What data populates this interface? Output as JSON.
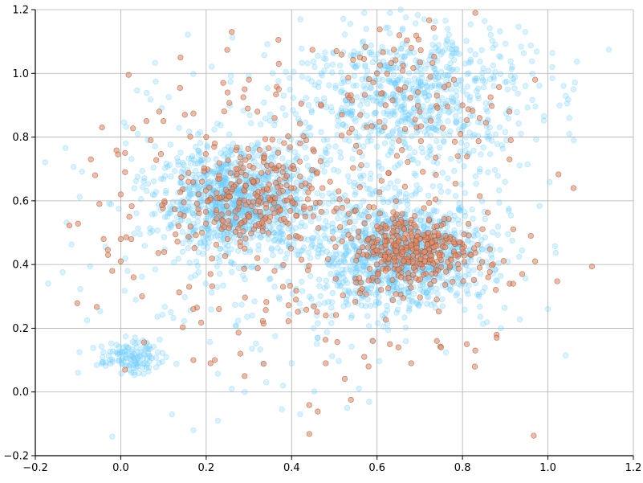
{
  "chart_data": {
    "type": "scatter",
    "title": "",
    "xlabel": "",
    "ylabel": "",
    "xlim": [
      -0.2,
      1.2
    ],
    "ylim": [
      -0.2,
      1.2
    ],
    "x_ticks": [
      -0.2,
      0.0,
      0.2,
      0.4,
      0.6,
      0.8,
      1.0,
      1.2
    ],
    "y_ticks": [
      -0.2,
      0.0,
      0.2,
      0.4,
      0.6,
      0.8,
      1.0,
      1.2
    ],
    "x_tick_labels": [
      "−0.2",
      "0.0",
      "0.2",
      "0.4",
      "0.6",
      "0.8",
      "1.0",
      "1.2"
    ],
    "y_tick_labels": [
      "−0.2",
      "0.0",
      "0.2",
      "0.4",
      "0.6",
      "0.8",
      "1.0",
      "1.2"
    ],
    "grid": true,
    "legend": "none",
    "colors": {
      "blue_fill": "#66ccff",
      "orange_fill": "#f08a60",
      "orange_edge": "#7a5a4a",
      "grid": "#b0b0b0",
      "axis": "#000000"
    },
    "series": [
      {
        "color": "#66ccff",
        "opacity": 0.25,
        "note_clusters": [
          {
            "center": [
              0.27,
              0.6
            ],
            "spread": [
              0.09,
              0.08
            ],
            "count": 900
          },
          {
            "center": [
              0.66,
              0.43
            ],
            "spread": [
              0.1,
              0.08
            ],
            "count": 1000
          },
          {
            "center": [
              0.68,
              0.93
            ],
            "spread": [
              0.14,
              0.12
            ],
            "count": 700
          },
          {
            "center": [
              0.02,
              0.11
            ],
            "spread": [
              0.035,
              0.025
            ],
            "count": 120
          },
          {
            "center": [
              0.45,
              0.55
            ],
            "spread": [
              0.25,
              0.25
            ],
            "count": 450
          }
        ],
        "points": [
          [
            -0.17,
            0.34
          ],
          [
            -0.1,
            0.06
          ],
          [
            0.12,
            -0.07
          ],
          [
            0.17,
            -0.12
          ],
          [
            -0.02,
            -0.14
          ],
          [
            1.06,
            0.95
          ],
          [
            1.05,
            0.86
          ],
          [
            1.05,
            0.81
          ],
          [
            1.01,
            1.02
          ],
          [
            1.0,
            0.26
          ],
          [
            0.57,
            1.19
          ],
          [
            0.63,
            1.19
          ],
          [
            0.71,
            1.17
          ],
          [
            0.89,
            0.2
          ],
          [
            0.42,
            -0.07
          ],
          [
            0.29,
            0.0
          ],
          [
            0.26,
            0.01
          ],
          [
            0.4,
            0.09
          ],
          [
            0.53,
            -0.05
          ],
          [
            0.38,
            0.02
          ]
        ]
      },
      {
        "color": "#f08a60",
        "opacity": 0.6,
        "note_clusters": [
          {
            "center": [
              0.29,
              0.6
            ],
            "spread": [
              0.08,
              0.08
            ],
            "count": 220
          },
          {
            "center": [
              0.68,
              0.45
            ],
            "spread": [
              0.07,
              0.06
            ],
            "count": 320
          },
          {
            "center": [
              0.66,
              0.92
            ],
            "spread": [
              0.12,
              0.12
            ],
            "count": 90
          },
          {
            "center": [
              0.4,
              0.5
            ],
            "spread": [
              0.25,
              0.25
            ],
            "count": 160
          }
        ],
        "points": [
          [
            0.26,
            1.13
          ],
          [
            0.14,
            1.05
          ],
          [
            0.83,
            1.19
          ],
          [
            0.37,
            1.03
          ],
          [
            -0.07,
            0.73
          ],
          [
            -0.06,
            0.68
          ],
          [
            -0.05,
            0.59
          ],
          [
            -0.04,
            0.48
          ],
          [
            -0.03,
            0.43
          ],
          [
            -0.02,
            0.38
          ],
          [
            0.01,
            0.75
          ],
          [
            0.01,
            0.69
          ],
          [
            0.0,
            0.62
          ],
          [
            0.02,
            0.55
          ],
          [
            0.0,
            0.48
          ],
          [
            0.0,
            0.41
          ],
          [
            0.05,
            0.3
          ],
          [
            0.03,
            0.36
          ],
          [
            1.06,
            0.64
          ],
          [
            0.97,
            0.98
          ],
          [
            0.97,
            0.41
          ],
          [
            0.96,
            0.49
          ],
          [
            0.91,
            0.73
          ],
          [
            0.91,
            0.88
          ],
          [
            0.94,
            0.37
          ],
          [
            0.88,
            0.18
          ],
          [
            0.88,
            0.17
          ],
          [
            0.83,
            0.13
          ],
          [
            0.81,
            0.15
          ],
          [
            0.75,
            0.14
          ],
          [
            0.74,
            0.16
          ],
          [
            0.68,
            0.09
          ],
          [
            0.65,
            0.14
          ],
          [
            0.63,
            0.15
          ],
          [
            0.58,
            0.08
          ],
          [
            0.57,
            0.11
          ],
          [
            0.59,
            0.16
          ],
          [
            0.48,
            0.09
          ],
          [
            0.01,
            0.07
          ],
          [
            0.17,
            0.1
          ],
          [
            0.21,
            0.09
          ],
          [
            0.22,
            0.1
          ],
          [
            0.28,
            0.12
          ],
          [
            0.29,
            0.05
          ],
          [
            0.23,
            0.26
          ],
          [
            0.21,
            0.37
          ],
          [
            0.16,
            0.33
          ],
          [
            0.17,
            0.26
          ],
          [
            0.07,
            0.79
          ],
          [
            0.06,
            0.85
          ],
          [
            0.09,
            0.88
          ],
          [
            0.1,
            0.85
          ],
          [
            0.15,
            0.87
          ],
          [
            0.24,
            0.97
          ],
          [
            0.25,
            0.94
          ],
          [
            0.29,
            0.95
          ],
          [
            0.3,
            0.98
          ],
          [
            0.37,
            0.95
          ],
          [
            0.36,
            0.86
          ],
          [
            0.42,
            0.78
          ],
          [
            0.32,
            0.88
          ],
          [
            0.37,
            0.71
          ],
          [
            0.22,
            0.78
          ],
          [
            0.2,
            0.8
          ],
          [
            0.23,
            0.68
          ],
          [
            0.27,
            0.7
          ],
          [
            0.31,
            0.66
          ],
          [
            0.34,
            0.59
          ],
          [
            0.35,
            0.55
          ],
          [
            0.19,
            0.5
          ],
          [
            0.25,
            0.48
          ],
          [
            0.29,
            0.45
          ],
          [
            0.32,
            0.42
          ],
          [
            0.36,
            0.38
          ],
          [
            0.38,
            0.33
          ],
          [
            0.41,
            0.29
          ],
          [
            0.48,
            0.24
          ],
          [
            0.56,
            0.31
          ],
          [
            0.58,
            0.35
          ],
          [
            0.62,
            0.38
          ],
          [
            0.64,
            0.41
          ],
          [
            0.66,
            0.44
          ],
          [
            0.68,
            0.46
          ],
          [
            0.7,
            0.48
          ],
          [
            0.72,
            0.5
          ],
          [
            0.74,
            0.52
          ],
          [
            0.76,
            0.49
          ],
          [
            0.78,
            0.47
          ],
          [
            0.8,
            0.45
          ],
          [
            0.82,
            0.43
          ],
          [
            0.84,
            0.39
          ],
          [
            0.86,
            0.36
          ],
          [
            0.62,
            0.49
          ],
          [
            0.6,
            0.52
          ],
          [
            0.58,
            0.55
          ],
          [
            0.55,
            0.57
          ],
          [
            0.53,
            0.6
          ],
          [
            0.51,
            0.63
          ],
          [
            0.49,
            0.66
          ],
          [
            0.46,
            0.69
          ],
          [
            0.62,
            0.9
          ],
          [
            0.65,
            0.95
          ],
          [
            0.7,
            0.88
          ],
          [
            0.74,
            0.93
          ],
          [
            0.78,
            0.98
          ],
          [
            0.6,
            1.0
          ],
          [
            0.56,
            1.05
          ],
          [
            0.68,
            1.08
          ],
          [
            0.8,
            0.9
          ],
          [
            0.84,
            0.86
          ]
        ]
      }
    ]
  }
}
